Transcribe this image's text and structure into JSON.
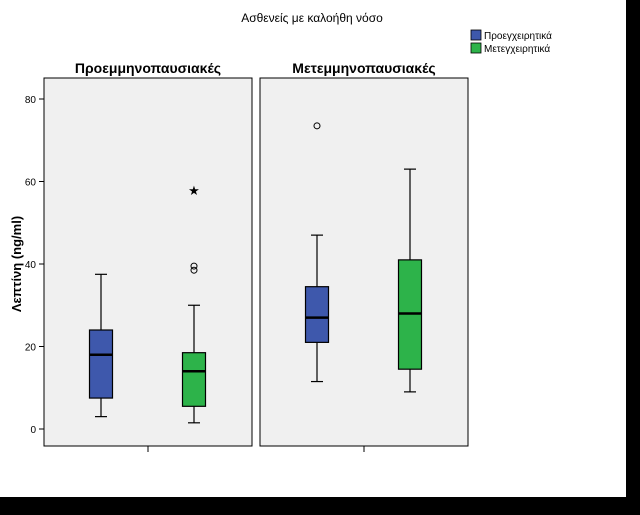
{
  "chart_data": {
    "type": "boxplot",
    "title": "Ασθενείς με καλοήθη νόσο",
    "ylabel": "Λεπτίνη (ng/ml)",
    "xlabel": "",
    "ylim": [
      -4,
      84
    ],
    "yticks": [
      0,
      20,
      40,
      60,
      80
    ],
    "grid": false,
    "legend_position": "top-right",
    "panel_background": "#f0f0f0",
    "series": [
      {
        "name": "Προεγχειρητικά",
        "color": "#3e58ac"
      },
      {
        "name": "Μετεγχειρητικά",
        "color": "#2db34a"
      }
    ],
    "panels": [
      {
        "title": "Προεμμηνοπαυσιακές",
        "boxes": [
          {
            "series": 0,
            "whisker_low": 3,
            "q1": 7.5,
            "median": 18,
            "q3": 24,
            "whisker_high": 37.5,
            "outliers": [],
            "extremes": []
          },
          {
            "series": 1,
            "whisker_low": 1.5,
            "q1": 5.5,
            "median": 14,
            "q3": 18.5,
            "whisker_high": 30,
            "outliers": [
              38.5,
              39.5
            ],
            "extremes": [
              58
            ]
          }
        ]
      },
      {
        "title": "Μετεμμηνοπαυσιακές",
        "boxes": [
          {
            "series": 0,
            "whisker_low": 11.5,
            "q1": 21,
            "median": 27,
            "q3": 34.5,
            "whisker_high": 47,
            "outliers": [
              73.5
            ],
            "extremes": []
          },
          {
            "series": 1,
            "whisker_low": 9,
            "q1": 14.5,
            "median": 28,
            "q3": 41,
            "whisker_high": 63,
            "outliers": [],
            "extremes": []
          }
        ]
      }
    ]
  }
}
